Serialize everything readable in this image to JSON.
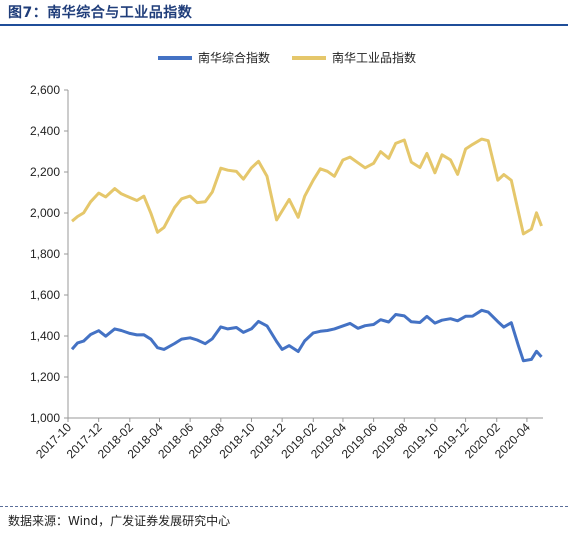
{
  "figure": {
    "title": "图7：南华综合与工业品指数",
    "source": "数据来源：Wind，广发证券发展研究中心"
  },
  "chart_data": {
    "type": "line",
    "title": "",
    "xlabel": "",
    "ylabel": "",
    "ylim": [
      1000,
      2600
    ],
    "yticks": [
      "1,000",
      "1,200",
      "1,400",
      "1,600",
      "1,800",
      "2,000",
      "2,200",
      "2,400",
      "2,600"
    ],
    "ytick_values": [
      1000,
      1200,
      1400,
      1600,
      1800,
      2000,
      2200,
      2400,
      2600
    ],
    "xticks": [
      "2017-10",
      "2017-12",
      "2018-02",
      "2018-04",
      "2018-06",
      "2018-08",
      "2018-10",
      "2018-12",
      "2019-02",
      "2019-04",
      "2019-06",
      "2019-08",
      "2019-10",
      "2019-12",
      "2020-02",
      "2020-04"
    ],
    "grid": false,
    "legend_position": "top-center",
    "series": [
      {
        "name": "南华综合指数",
        "color": "#4472c4",
        "x": [
          "2017-10-09",
          "2017-10-20",
          "2017-11-01",
          "2017-11-15",
          "2017-12-01",
          "2017-12-15",
          "2018-01-02",
          "2018-01-15",
          "2018-02-01",
          "2018-02-15",
          "2018-03-01",
          "2018-03-15",
          "2018-03-28",
          "2018-04-10",
          "2018-05-01",
          "2018-05-15",
          "2018-06-01",
          "2018-06-15",
          "2018-07-01",
          "2018-07-15",
          "2018-08-01",
          "2018-08-15",
          "2018-09-01",
          "2018-09-15",
          "2018-10-01",
          "2018-10-15",
          "2018-11-01",
          "2018-11-20",
          "2018-12-01",
          "2018-12-15",
          "2019-01-02",
          "2019-01-15",
          "2019-02-01",
          "2019-02-15",
          "2019-03-01",
          "2019-03-15",
          "2019-04-01",
          "2019-04-15",
          "2019-05-01",
          "2019-05-15",
          "2019-06-01",
          "2019-06-15",
          "2019-07-01",
          "2019-07-15",
          "2019-08-01",
          "2019-08-15",
          "2019-09-01",
          "2019-09-15",
          "2019-10-01",
          "2019-10-15",
          "2019-11-01",
          "2019-11-15",
          "2019-12-01",
          "2019-12-15",
          "2020-01-02",
          "2020-01-15",
          "2020-02-03",
          "2020-02-15",
          "2020-03-01",
          "2020-03-15",
          "2020-03-25",
          "2020-04-10",
          "2020-04-20",
          "2020-04-30"
        ],
        "values": [
          1335,
          1370,
          1380,
          1410,
          1425,
          1395,
          1430,
          1425,
          1415,
          1410,
          1410,
          1385,
          1340,
          1330,
          1360,
          1385,
          1395,
          1385,
          1365,
          1385,
          1440,
          1430,
          1440,
          1420,
          1440,
          1475,
          1450,
          1370,
          1330,
          1350,
          1325,
          1380,
          1420,
          1425,
          1425,
          1430,
          1445,
          1460,
          1440,
          1455,
          1460,
          1480,
          1465,
          1500,
          1495,
          1470,
          1470,
          1500,
          1465,
          1475,
          1480,
          1470,
          1495,
          1500,
          1530,
          1520,
          1470,
          1440,
          1460,
          1350,
          1280,
          1290,
          1330,
          1300
        ]
      },
      {
        "name": "南华工业品指数",
        "color": "#e5c76b",
        "x": [
          "2017-10-09",
          "2017-10-20",
          "2017-11-01",
          "2017-11-15",
          "2017-12-01",
          "2017-12-15",
          "2018-01-02",
          "2018-01-15",
          "2018-02-01",
          "2018-02-15",
          "2018-03-01",
          "2018-03-15",
          "2018-03-28",
          "2018-04-10",
          "2018-05-01",
          "2018-05-15",
          "2018-06-01",
          "2018-06-15",
          "2018-07-01",
          "2018-07-15",
          "2018-08-01",
          "2018-08-15",
          "2018-09-01",
          "2018-09-15",
          "2018-10-01",
          "2018-10-15",
          "2018-11-01",
          "2018-11-20",
          "2018-12-01",
          "2018-12-15",
          "2019-01-02",
          "2019-01-15",
          "2019-02-01",
          "2019-02-15",
          "2019-03-01",
          "2019-03-15",
          "2019-04-01",
          "2019-04-15",
          "2019-05-01",
          "2019-05-15",
          "2019-06-01",
          "2019-06-15",
          "2019-07-01",
          "2019-07-15",
          "2019-08-01",
          "2019-08-15",
          "2019-09-01",
          "2019-09-15",
          "2019-10-01",
          "2019-10-15",
          "2019-11-01",
          "2019-11-15",
          "2019-12-01",
          "2019-12-15",
          "2020-01-02",
          "2020-01-15",
          "2020-02-03",
          "2020-02-15",
          "2020-03-01",
          "2020-03-15",
          "2020-03-25",
          "2020-04-10",
          "2020-04-20",
          "2020-04-30"
        ],
        "values": [
          1960,
          1990,
          2010,
          2060,
          2095,
          2070,
          2110,
          2090,
          2080,
          2070,
          2090,
          2000,
          1900,
          1920,
          2020,
          2070,
          2090,
          2060,
          2060,
          2100,
          2210,
          2200,
          2200,
          2170,
          2230,
          2260,
          2180,
          1960,
          2000,
          2060,
          1980,
          2090,
          2170,
          2220,
          2200,
          2170,
          2250,
          2270,
          2250,
          2230,
          2250,
          2300,
          2260,
          2330,
          2350,
          2250,
          2230,
          2300,
          2200,
          2280,
          2250,
          2180,
          2310,
          2340,
          2370,
          2360,
          2160,
          2180,
          2150,
          2000,
          1900,
          1930,
          2010,
          1940
        ]
      }
    ]
  }
}
